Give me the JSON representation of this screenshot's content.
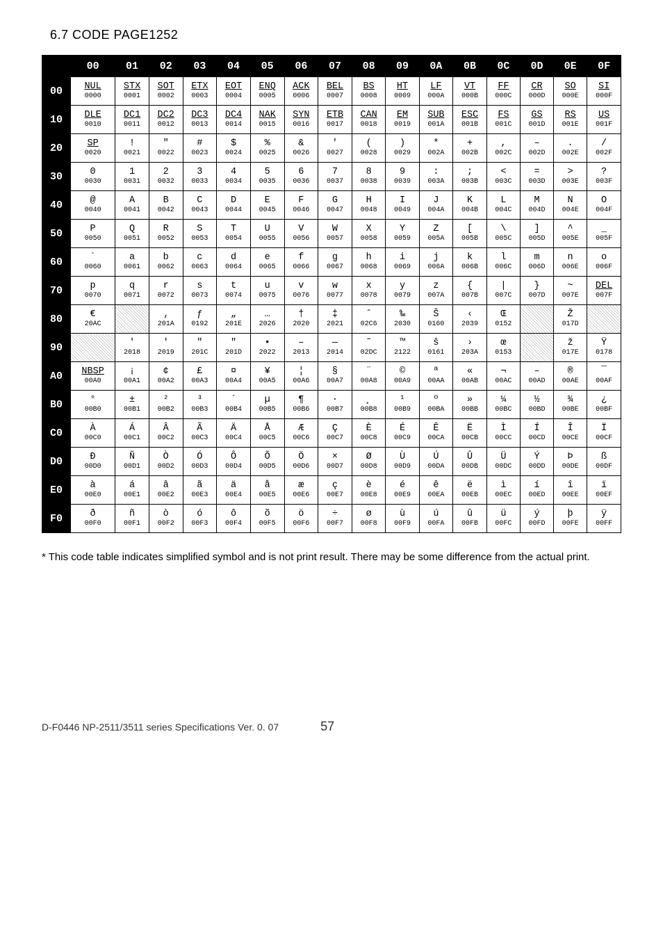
{
  "title": "6.7 CODE PAGE1252",
  "footnote": "* This code table indicates simplified symbol and is not print result. There may be some difference from the actual print.",
  "footer_doc": "D-F0446 NP-2511/3511 series Specifications  Ver.  0. 07",
  "footer_page": "57",
  "cols": [
    "00",
    "01",
    "02",
    "03",
    "04",
    "05",
    "06",
    "07",
    "08",
    "09",
    "0A",
    "0B",
    "0C",
    "0D",
    "0E",
    "0F"
  ],
  "rows": [
    {
      "h": "00",
      "c": [
        {
          "s": "NUL",
          "u": 1,
          "c": "0000"
        },
        {
          "s": "STX",
          "u": 1,
          "c": "0001"
        },
        {
          "s": "SOT",
          "u": 1,
          "c": "0002"
        },
        {
          "s": "ETX",
          "u": 1,
          "c": "0003"
        },
        {
          "s": "EOT",
          "u": 1,
          "c": "0004"
        },
        {
          "s": "ENQ",
          "u": 1,
          "c": "0005"
        },
        {
          "s": "ACK",
          "u": 1,
          "c": "0006"
        },
        {
          "s": "BEL",
          "u": 1,
          "c": "0007"
        },
        {
          "s": "BS",
          "u": 1,
          "c": "0008"
        },
        {
          "s": "HT",
          "u": 1,
          "c": "0009"
        },
        {
          "s": "LF",
          "u": 1,
          "c": "000A"
        },
        {
          "s": "VT",
          "u": 1,
          "c": "000B"
        },
        {
          "s": "FF",
          "u": 1,
          "c": "000C"
        },
        {
          "s": "CR",
          "u": 1,
          "c": "000D"
        },
        {
          "s": "SO",
          "u": 1,
          "c": "000E"
        },
        {
          "s": "SI",
          "u": 1,
          "c": "000F"
        }
      ]
    },
    {
      "h": "10",
      "c": [
        {
          "s": "DLE",
          "u": 1,
          "c": "0010"
        },
        {
          "s": "DC1",
          "u": 1,
          "c": "0011"
        },
        {
          "s": "DC2",
          "u": 1,
          "c": "0012"
        },
        {
          "s": "DC3",
          "u": 1,
          "c": "0013"
        },
        {
          "s": "DC4",
          "u": 1,
          "c": "0014"
        },
        {
          "s": "NAK",
          "u": 1,
          "c": "0015"
        },
        {
          "s": "SYN",
          "u": 1,
          "c": "0016"
        },
        {
          "s": "ETB",
          "u": 1,
          "c": "0017"
        },
        {
          "s": "CAN",
          "u": 1,
          "c": "0018"
        },
        {
          "s": "EM",
          "u": 1,
          "c": "0019"
        },
        {
          "s": "SUB",
          "u": 1,
          "c": "001A"
        },
        {
          "s": "ESC",
          "u": 1,
          "c": "001B"
        },
        {
          "s": "FS",
          "u": 1,
          "c": "001C"
        },
        {
          "s": "GS",
          "u": 1,
          "c": "001D"
        },
        {
          "s": "RS",
          "u": 1,
          "c": "001E"
        },
        {
          "s": "US",
          "u": 1,
          "c": "001F"
        }
      ]
    },
    {
      "h": "20",
      "c": [
        {
          "s": "SP",
          "u": 1,
          "c": "0020"
        },
        {
          "s": "!",
          "c": "0021"
        },
        {
          "s": "\"",
          "c": "0022"
        },
        {
          "s": "#",
          "c": "0023"
        },
        {
          "s": "$",
          "c": "0024"
        },
        {
          "s": "%",
          "c": "0025"
        },
        {
          "s": "&",
          "c": "0026"
        },
        {
          "s": "'",
          "c": "0027"
        },
        {
          "s": "(",
          "c": "0028"
        },
        {
          "s": ")",
          "c": "0029"
        },
        {
          "s": "*",
          "c": "002A"
        },
        {
          "s": "+",
          "c": "002B"
        },
        {
          "s": ",",
          "c": "002C"
        },
        {
          "s": "–",
          "c": "002D"
        },
        {
          "s": ".",
          "c": "002E"
        },
        {
          "s": "/",
          "c": "002F"
        }
      ]
    },
    {
      "h": "30",
      "c": [
        {
          "s": "0",
          "c": "0030"
        },
        {
          "s": "1",
          "c": "0031"
        },
        {
          "s": "2",
          "c": "0032"
        },
        {
          "s": "3",
          "c": "0033"
        },
        {
          "s": "4",
          "c": "0034"
        },
        {
          "s": "5",
          "c": "0035"
        },
        {
          "s": "6",
          "c": "0036"
        },
        {
          "s": "7",
          "c": "0037"
        },
        {
          "s": "8",
          "c": "0038"
        },
        {
          "s": "9",
          "c": "0039"
        },
        {
          "s": ":",
          "c": "003A"
        },
        {
          "s": ";",
          "c": "003B"
        },
        {
          "s": "<",
          "c": "003C"
        },
        {
          "s": "=",
          "c": "003D"
        },
        {
          "s": ">",
          "c": "003E"
        },
        {
          "s": "?",
          "c": "003F"
        }
      ]
    },
    {
      "h": "40",
      "c": [
        {
          "s": "@",
          "c": "0040"
        },
        {
          "s": "A",
          "c": "0041"
        },
        {
          "s": "B",
          "c": "0042"
        },
        {
          "s": "C",
          "c": "0043"
        },
        {
          "s": "D",
          "c": "0044"
        },
        {
          "s": "E",
          "c": "0045"
        },
        {
          "s": "F",
          "c": "0046"
        },
        {
          "s": "G",
          "c": "0047"
        },
        {
          "s": "H",
          "c": "0048"
        },
        {
          "s": "I",
          "c": "0049"
        },
        {
          "s": "J",
          "c": "004A"
        },
        {
          "s": "K",
          "c": "004B"
        },
        {
          "s": "L",
          "c": "004C"
        },
        {
          "s": "M",
          "c": "004D"
        },
        {
          "s": "N",
          "c": "004E"
        },
        {
          "s": "O",
          "c": "004F"
        }
      ]
    },
    {
      "h": "50",
      "c": [
        {
          "s": "P",
          "c": "0050"
        },
        {
          "s": "Q",
          "c": "0051"
        },
        {
          "s": "R",
          "c": "0052"
        },
        {
          "s": "S",
          "c": "0053"
        },
        {
          "s": "T",
          "c": "0054"
        },
        {
          "s": "U",
          "c": "0055"
        },
        {
          "s": "V",
          "c": "0056"
        },
        {
          "s": "W",
          "c": "0057"
        },
        {
          "s": "X",
          "c": "0058"
        },
        {
          "s": "Y",
          "c": "0059"
        },
        {
          "s": "Z",
          "c": "005A"
        },
        {
          "s": "[",
          "c": "005B"
        },
        {
          "s": "\\",
          "c": "005C"
        },
        {
          "s": "]",
          "c": "005D"
        },
        {
          "s": "^",
          "c": "005E"
        },
        {
          "s": "_",
          "c": "005F"
        }
      ]
    },
    {
      "h": "60",
      "c": [
        {
          "s": "`",
          "c": "0060"
        },
        {
          "s": "a",
          "c": "0061"
        },
        {
          "s": "b",
          "c": "0062"
        },
        {
          "s": "c",
          "c": "0063"
        },
        {
          "s": "d",
          "c": "0064"
        },
        {
          "s": "e",
          "c": "0065"
        },
        {
          "s": "f",
          "c": "0066"
        },
        {
          "s": "g",
          "c": "0067"
        },
        {
          "s": "h",
          "c": "0068"
        },
        {
          "s": "i",
          "c": "0069"
        },
        {
          "s": "j",
          "c": "006A"
        },
        {
          "s": "k",
          "c": "006B"
        },
        {
          "s": "l",
          "c": "006C"
        },
        {
          "s": "m",
          "c": "006D"
        },
        {
          "s": "n",
          "c": "006E"
        },
        {
          "s": "o",
          "c": "006F"
        }
      ]
    },
    {
      "h": "70",
      "c": [
        {
          "s": "p",
          "c": "0070"
        },
        {
          "s": "q",
          "c": "0071"
        },
        {
          "s": "r",
          "c": "0072"
        },
        {
          "s": "s",
          "c": "0073"
        },
        {
          "s": "t",
          "c": "0074"
        },
        {
          "s": "u",
          "c": "0075"
        },
        {
          "s": "v",
          "c": "0076"
        },
        {
          "s": "w",
          "c": "0077"
        },
        {
          "s": "x",
          "c": "0078"
        },
        {
          "s": "y",
          "c": "0079"
        },
        {
          "s": "z",
          "c": "007A"
        },
        {
          "s": "{",
          "c": "007B"
        },
        {
          "s": "|",
          "c": "007C"
        },
        {
          "s": "}",
          "c": "007D"
        },
        {
          "s": "~",
          "c": "007E"
        },
        {
          "s": "DEL",
          "u": 1,
          "c": "007F"
        }
      ]
    },
    {
      "h": "80",
      "c": [
        {
          "s": "€",
          "c": "20AC"
        },
        {
          "e": 1
        },
        {
          "s": "‚",
          "c": "201A"
        },
        {
          "s": "ƒ",
          "c": "0192"
        },
        {
          "s": "„",
          "c": "201E"
        },
        {
          "s": "…",
          "c": "2026"
        },
        {
          "s": "†",
          "c": "2020"
        },
        {
          "s": "‡",
          "c": "2021"
        },
        {
          "s": "ˆ",
          "c": "02C6"
        },
        {
          "s": "‰",
          "c": "2030"
        },
        {
          "s": "Š",
          "c": "0160"
        },
        {
          "s": "‹",
          "c": "2039"
        },
        {
          "s": "Œ",
          "c": "0152"
        },
        {
          "e": 1
        },
        {
          "s": "Ž",
          "c": "017D"
        },
        {
          "e": 1
        }
      ]
    },
    {
      "h": "90",
      "c": [
        {
          "e": 1
        },
        {
          "s": "'",
          "c": "2018"
        },
        {
          "s": "'",
          "c": "2019"
        },
        {
          "s": "\"",
          "c": "201C"
        },
        {
          "s": "\"",
          "c": "201D"
        },
        {
          "s": "•",
          "c": "2022"
        },
        {
          "s": "–",
          "c": "2013"
        },
        {
          "s": "—",
          "c": "2014"
        },
        {
          "s": "˜",
          "c": "02DC"
        },
        {
          "s": "™",
          "c": "2122"
        },
        {
          "s": "š",
          "c": "0161"
        },
        {
          "s": "›",
          "c": "203A"
        },
        {
          "s": "œ",
          "c": "0153"
        },
        {
          "e": 1
        },
        {
          "s": "ž",
          "c": "017E"
        },
        {
          "s": "Ÿ",
          "c": "0178"
        }
      ]
    },
    {
      "h": "A0",
      "c": [
        {
          "s": "NBSP",
          "u": 1,
          "c": "00A0"
        },
        {
          "s": "¡",
          "c": "00A1"
        },
        {
          "s": "¢",
          "c": "00A2"
        },
        {
          "s": "£",
          "c": "00A3"
        },
        {
          "s": "¤",
          "c": "00A4"
        },
        {
          "s": "¥",
          "c": "00A5"
        },
        {
          "s": "¦",
          "c": "00A6"
        },
        {
          "s": "§",
          "c": "00A7"
        },
        {
          "s": "¨",
          "c": "00A8"
        },
        {
          "s": "©",
          "c": "00A9"
        },
        {
          "s": "ª",
          "c": "00AA"
        },
        {
          "s": "«",
          "c": "00AB"
        },
        {
          "s": "¬",
          "c": "00AC"
        },
        {
          "s": "–",
          "c": "00AD"
        },
        {
          "s": "®",
          "c": "00AE"
        },
        {
          "s": "¯",
          "c": "00AF"
        }
      ]
    },
    {
      "h": "B0",
      "c": [
        {
          "s": "°",
          "c": "00B0"
        },
        {
          "s": "±",
          "c": "00B1"
        },
        {
          "s": "²",
          "c": "00B2"
        },
        {
          "s": "³",
          "c": "00B3"
        },
        {
          "s": "´",
          "c": "00B4"
        },
        {
          "s": "µ",
          "c": "00B5"
        },
        {
          "s": "¶",
          "c": "00B6"
        },
        {
          "s": "·",
          "c": "00B7"
        },
        {
          "s": "¸",
          "c": "00B8"
        },
        {
          "s": "¹",
          "c": "00B9"
        },
        {
          "s": "º",
          "c": "00BA"
        },
        {
          "s": "»",
          "c": "00BB"
        },
        {
          "s": "¼",
          "c": "00BC"
        },
        {
          "s": "½",
          "c": "00BD"
        },
        {
          "s": "¾",
          "c": "00BE"
        },
        {
          "s": "¿",
          "c": "00BF"
        }
      ]
    },
    {
      "h": "C0",
      "c": [
        {
          "s": "À",
          "c": "00C0"
        },
        {
          "s": "Á",
          "c": "00C1"
        },
        {
          "s": "Â",
          "c": "00C2"
        },
        {
          "s": "Ã",
          "c": "00C3"
        },
        {
          "s": "Ä",
          "c": "00C4"
        },
        {
          "s": "Å",
          "c": "00C5"
        },
        {
          "s": "Æ",
          "c": "00C6"
        },
        {
          "s": "Ç",
          "c": "00C7"
        },
        {
          "s": "È",
          "c": "00C8"
        },
        {
          "s": "É",
          "c": "00C9"
        },
        {
          "s": "Ê",
          "c": "00CA"
        },
        {
          "s": "Ë",
          "c": "00CB"
        },
        {
          "s": "Ì",
          "c": "00CC"
        },
        {
          "s": "Í",
          "c": "00CD"
        },
        {
          "s": "Î",
          "c": "00CE"
        },
        {
          "s": "Ï",
          "c": "00CF"
        }
      ]
    },
    {
      "h": "D0",
      "c": [
        {
          "s": "Ð",
          "c": "00D0"
        },
        {
          "s": "Ñ",
          "c": "00D1"
        },
        {
          "s": "Ò",
          "c": "00D2"
        },
        {
          "s": "Ó",
          "c": "00D3"
        },
        {
          "s": "Ô",
          "c": "00D4"
        },
        {
          "s": "Õ",
          "c": "00D5"
        },
        {
          "s": "Ö",
          "c": "00D6"
        },
        {
          "s": "×",
          "c": "00D7"
        },
        {
          "s": "Ø",
          "c": "00D8"
        },
        {
          "s": "Ù",
          "c": "00D9"
        },
        {
          "s": "Ú",
          "c": "00DA"
        },
        {
          "s": "Û",
          "c": "00DB"
        },
        {
          "s": "Ü",
          "c": "00DC"
        },
        {
          "s": "Ý",
          "c": "00DD"
        },
        {
          "s": "Þ",
          "c": "00DE"
        },
        {
          "s": "ß",
          "c": "00DF"
        }
      ]
    },
    {
      "h": "E0",
      "c": [
        {
          "s": "à",
          "c": "00E0"
        },
        {
          "s": "á",
          "c": "00E1"
        },
        {
          "s": "â",
          "c": "00E2"
        },
        {
          "s": "ã",
          "c": "00E3"
        },
        {
          "s": "ä",
          "c": "00E4"
        },
        {
          "s": "å",
          "c": "00E5"
        },
        {
          "s": "æ",
          "c": "00E6"
        },
        {
          "s": "ç",
          "c": "00E7"
        },
        {
          "s": "è",
          "c": "00E8"
        },
        {
          "s": "é",
          "c": "00E9"
        },
        {
          "s": "ê",
          "c": "00EA"
        },
        {
          "s": "ë",
          "c": "00EB"
        },
        {
          "s": "ì",
          "c": "00EC"
        },
        {
          "s": "í",
          "c": "00ED"
        },
        {
          "s": "î",
          "c": "00EE"
        },
        {
          "s": "ï",
          "c": "00EF"
        }
      ]
    },
    {
      "h": "F0",
      "c": [
        {
          "s": "ð",
          "c": "00F0"
        },
        {
          "s": "ñ",
          "c": "00F1"
        },
        {
          "s": "ò",
          "c": "00F2"
        },
        {
          "s": "ó",
          "c": "00F3"
        },
        {
          "s": "ô",
          "c": "00F4"
        },
        {
          "s": "õ",
          "c": "00F5"
        },
        {
          "s": "ö",
          "c": "00F6"
        },
        {
          "s": "÷",
          "c": "00F7"
        },
        {
          "s": "ø",
          "c": "00F8"
        },
        {
          "s": "ù",
          "c": "00F9"
        },
        {
          "s": "ú",
          "c": "00FA"
        },
        {
          "s": "û",
          "c": "00FB"
        },
        {
          "s": "ü",
          "c": "00FC"
        },
        {
          "s": "ý",
          "c": "00FD"
        },
        {
          "s": "þ",
          "c": "00FE"
        },
        {
          "s": "ÿ",
          "c": "00FF"
        }
      ]
    }
  ]
}
